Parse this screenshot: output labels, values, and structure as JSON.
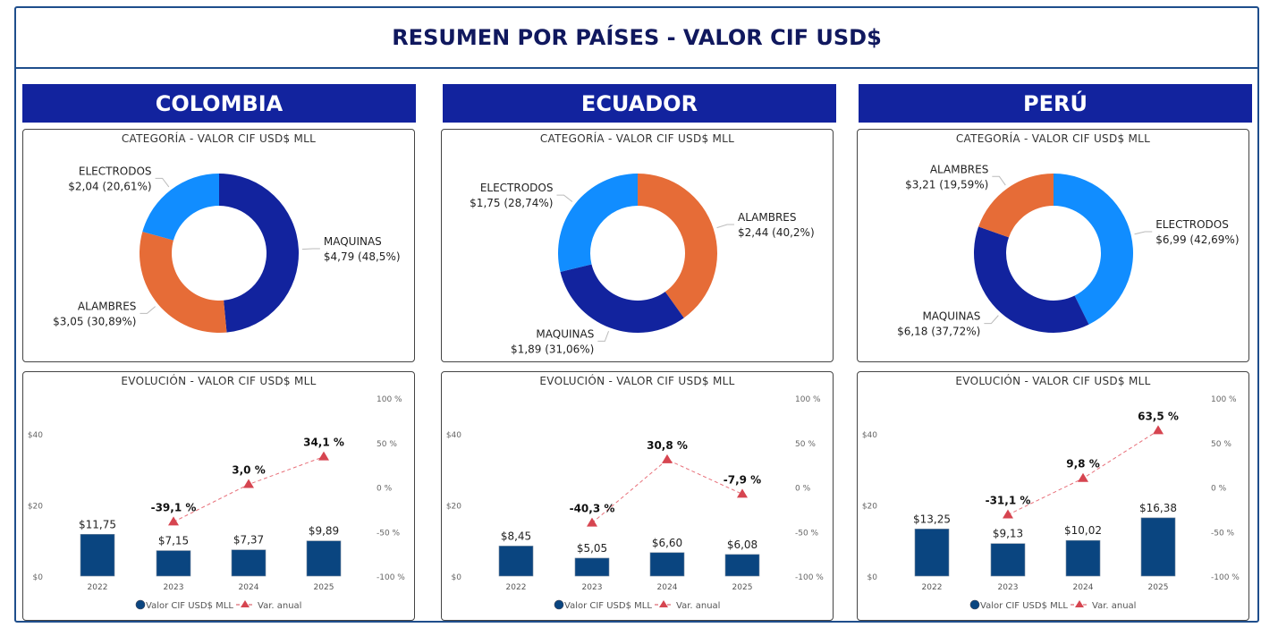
{
  "title": "RESUMEN POR PAÍSES - VALOR CIF USD$",
  "colors": {
    "maquinas": "#12239e",
    "alambres": "#e66c37",
    "electrodos": "#118dff",
    "bar": "#0a4580",
    "line": "#d64550",
    "header": "#12239e"
  },
  "chart_data": [
    {
      "country": "COLOMBIA",
      "donut": {
        "type": "pie",
        "title": "CATEGORÍA - VALOR CIF USD$ MLL",
        "slices": [
          {
            "label": "MAQUINAS",
            "value": 4.79,
            "text": "$4,79 (48,5%)",
            "color": "#12239e"
          },
          {
            "label": "ALAMBRES",
            "value": 3.05,
            "text": "$3,05 (30,89%)",
            "color": "#e66c37"
          },
          {
            "label": "ELECTRODOS",
            "value": 2.04,
            "text": "$2,04 (20,61%)",
            "color": "#118dff"
          }
        ]
      },
      "bars": {
        "type": "bar",
        "title": "EVOLUCIÓN - VALOR CIF USD$ MLL",
        "categories": [
          "2022",
          "2023",
          "2024",
          "2025"
        ],
        "values": [
          11.75,
          7.15,
          7.37,
          9.89
        ],
        "value_labels": [
          "$11,75",
          "$7,15",
          "$7,37",
          "$9,89"
        ],
        "var": [
          null,
          -39.1,
          3.0,
          34.1
        ],
        "var_labels": [
          "",
          "-39,1 %",
          "3,0 %",
          "34,1 %"
        ],
        "ylim": [
          0,
          40
        ],
        "yticks": [
          "$0",
          "$20",
          "$40"
        ],
        "y2lim": [
          -100,
          100
        ],
        "y2ticks": [
          "-100 %",
          "-50 %",
          "0 %",
          "50 %",
          "100 %"
        ],
        "legend": [
          "Valor CIF USD$ MLL",
          "Var. anual"
        ]
      }
    },
    {
      "country": "ECUADOR",
      "donut": {
        "type": "pie",
        "title": "CATEGORÍA - VALOR CIF USD$ MLL",
        "slices": [
          {
            "label": "ALAMBRES",
            "value": 2.44,
            "text": "$2,44 (40,2%)",
            "color": "#e66c37"
          },
          {
            "label": "MAQUINAS",
            "value": 1.89,
            "text": "$1,89 (31,06%)",
            "color": "#12239e"
          },
          {
            "label": "ELECTRODOS",
            "value": 1.75,
            "text": "$1,75 (28,74%)",
            "color": "#118dff"
          }
        ]
      },
      "bars": {
        "type": "bar",
        "title": "EVOLUCIÓN - VALOR CIF USD$ MLL",
        "categories": [
          "2022",
          "2023",
          "2024",
          "2025"
        ],
        "values": [
          8.45,
          5.05,
          6.6,
          6.08
        ],
        "value_labels": [
          "$8,45",
          "$5,05",
          "$6,60",
          "$6,08"
        ],
        "var": [
          null,
          -40.3,
          30.8,
          -7.9
        ],
        "var_labels": [
          "",
          "-40,3 %",
          "30,8 %",
          "-7,9 %"
        ],
        "ylim": [
          0,
          40
        ],
        "yticks": [
          "$0",
          "$20",
          "$40"
        ],
        "y2lim": [
          -100,
          100
        ],
        "y2ticks": [
          "-100 %",
          "-50 %",
          "0 %",
          "50 %",
          "100 %"
        ],
        "legend": [
          "Valor CIF USD$ MLL",
          "Var. anual"
        ]
      }
    },
    {
      "country": "PERÚ",
      "donut": {
        "type": "pie",
        "title": "CATEGORÍA - VALOR CIF USD$ MLL",
        "slices": [
          {
            "label": "ELECTRODOS",
            "value": 6.99,
            "text": "$6,99 (42,69%)",
            "color": "#118dff"
          },
          {
            "label": "MAQUINAS",
            "value": 6.18,
            "text": "$6,18 (37,72%)",
            "color": "#12239e"
          },
          {
            "label": "ALAMBRES",
            "value": 3.21,
            "text": "$3,21 (19,59%)",
            "color": "#e66c37"
          }
        ]
      },
      "bars": {
        "type": "bar",
        "title": "EVOLUCIÓN - VALOR CIF USD$ MLL",
        "categories": [
          "2022",
          "2023",
          "2024",
          "2025"
        ],
        "values": [
          13.25,
          9.13,
          10.02,
          16.38
        ],
        "value_labels": [
          "$13,25",
          "$9,13",
          "$10,02",
          "$16,38"
        ],
        "var": [
          null,
          -31.1,
          9.8,
          63.5
        ],
        "var_labels": [
          "",
          "-31,1 %",
          "9,8 %",
          "63,5 %"
        ],
        "ylim": [
          0,
          40
        ],
        "yticks": [
          "$0",
          "$20",
          "$40"
        ],
        "y2lim": [
          -100,
          100
        ],
        "y2ticks": [
          "-100 %",
          "-50 %",
          "0 %",
          "50 %",
          "100 %"
        ],
        "legend": [
          "Valor CIF USD$ MLL",
          "Var. anual"
        ]
      }
    }
  ]
}
